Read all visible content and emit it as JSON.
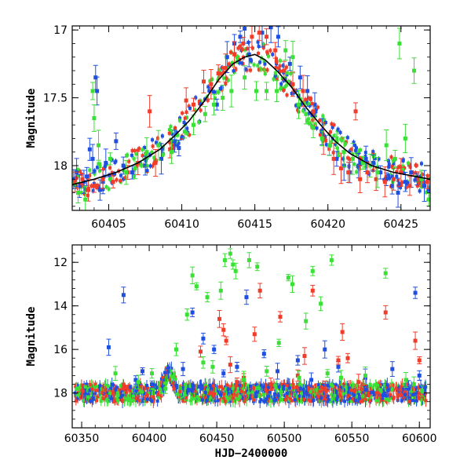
{
  "chart_data": [
    {
      "type": "scatter",
      "title": "",
      "xlabel": "",
      "ylabel": "Magnitude",
      "xlim": [
        60402.5,
        60427
      ],
      "ylim": [
        18.33,
        16.97
      ],
      "y_inverted": true,
      "xticks": [
        60405,
        60410,
        60415,
        60420,
        60425
      ],
      "xtick_labels": [
        "60405",
        "60410",
        "60415",
        "60420",
        "60425"
      ],
      "yticks": [
        17,
        17.5,
        18
      ],
      "ytick_labels": [
        "17",
        "17.5",
        "18"
      ],
      "grid": false,
      "legend": "none",
      "series": [
        {
          "color": "#1f4fe0",
          "points": [
            [
              60402.6,
              18.1
            ],
            [
              60402.8,
              18.05
            ],
            [
              60403.0,
              18.15
            ],
            [
              60403.3,
              18.12
            ],
            [
              60403.5,
              18.08
            ],
            [
              60403.7,
              17.88
            ],
            [
              60403.9,
              17.95
            ],
            [
              60404.1,
              17.35
            ],
            [
              60404.2,
              17.45
            ],
            [
              60404.4,
              18.18
            ],
            [
              60404.6,
              18.12
            ],
            [
              60404.8,
              17.98
            ],
            [
              60405.5,
              17.82
            ],
            [
              60406.0,
              18.0
            ],
            [
              60406.6,
              18.05
            ],
            [
              60407.5,
              18.0
            ],
            [
              60408.6,
              17.95
            ],
            [
              60409.5,
              17.82
            ],
            [
              60409.8,
              17.87
            ],
            [
              60412.4,
              17.55
            ],
            [
              60413.1,
              17.2
            ],
            [
              60413.6,
              17.1
            ],
            [
              60414.0,
              17.05
            ],
            [
              60414.3,
              16.99
            ],
            [
              60414.6,
              17.18
            ],
            [
              60415.5,
              17.02
            ],
            [
              60416.1,
              16.98
            ],
            [
              60416.6,
              17.05
            ],
            [
              60417.4,
              17.25
            ],
            [
              60418.1,
              17.35
            ],
            [
              60418.6,
              17.45
            ],
            [
              60419.1,
              17.55
            ],
            [
              60419.6,
              17.75
            ],
            [
              60420.1,
              17.85
            ],
            [
              60420.6,
              17.95
            ],
            [
              60421.1,
              18.0
            ],
            [
              60421.5,
              18.05
            ],
            [
              60422.1,
              18.0
            ],
            [
              60422.6,
              17.95
            ],
            [
              60423.1,
              17.98
            ],
            [
              60423.6,
              18.05
            ],
            [
              60424.0,
              18.1
            ],
            [
              60424.4,
              18.15
            ],
            [
              60424.8,
              18.2
            ],
            [
              60425.3,
              18.12
            ],
            [
              60425.7,
              18.05
            ],
            [
              60426.1,
              18.1
            ],
            [
              60426.6,
              18.15
            ],
            [
              60426.9,
              18.18
            ]
          ]
        },
        {
          "color": "#f03c28",
          "points": [
            [
              60402.7,
              18.12
            ],
            [
              60403.2,
              18.1
            ],
            [
              60403.6,
              18.18
            ],
            [
              60404.0,
              18.15
            ],
            [
              60404.6,
              18.1
            ],
            [
              60405.3,
              18.12
            ],
            [
              60406.3,
              18.05
            ],
            [
              60407.0,
              17.98
            ],
            [
              60407.8,
              17.6
            ],
            [
              60408.2,
              17.98
            ],
            [
              60409.2,
              17.88
            ],
            [
              60410.3,
              17.52
            ],
            [
              60410.8,
              17.55
            ],
            [
              60411.5,
              17.38
            ],
            [
              60412.0,
              17.4
            ],
            [
              60412.5,
              17.32
            ],
            [
              60413.0,
              17.28
            ],
            [
              60413.6,
              17.18
            ],
            [
              60414.2,
              17.1
            ],
            [
              60414.8,
              17.05
            ],
            [
              60415.3,
              17.02
            ],
            [
              60415.8,
              17.05
            ],
            [
              60416.4,
              17.15
            ],
            [
              60417.0,
              17.3
            ],
            [
              60417.6,
              17.4
            ],
            [
              60418.3,
              17.45
            ],
            [
              60419.0,
              17.6
            ],
            [
              60419.7,
              17.8
            ],
            [
              60420.4,
              17.95
            ],
            [
              60420.9,
              18.02
            ],
            [
              60421.4,
              18.05
            ],
            [
              60421.9,
              17.6
            ],
            [
              60422.2,
              18.1
            ],
            [
              60422.7,
              18.05
            ],
            [
              60423.3,
              18.1
            ],
            [
              60423.9,
              18.12
            ],
            [
              60424.5,
              18.1
            ],
            [
              60425.0,
              18.05
            ],
            [
              60425.6,
              18.15
            ],
            [
              60426.2,
              18.1
            ],
            [
              60426.8,
              18.12
            ]
          ]
        },
        {
          "color": "#3be036",
          "points": [
            [
              60402.9,
              18.2
            ],
            [
              60403.4,
              18.25
            ],
            [
              60403.9,
              17.45
            ],
            [
              60404.0,
              17.65
            ],
            [
              60404.3,
              17.85
            ],
            [
              60405.1,
              17.95
            ],
            [
              60406.2,
              18.05
            ],
            [
              60406.8,
              18.02
            ],
            [
              60407.6,
              17.9
            ],
            [
              60408.4,
              17.85
            ],
            [
              60409.3,
              17.9
            ],
            [
              60410.2,
              17.75
            ],
            [
              60410.8,
              17.7
            ],
            [
              60411.6,
              17.62
            ],
            [
              60412.2,
              17.55
            ],
            [
              60412.8,
              17.5
            ],
            [
              60413.4,
              17.45
            ],
            [
              60414.3,
              17.35
            ],
            [
              60415.1,
              17.45
            ],
            [
              60415.8,
              17.45
            ],
            [
              60416.5,
              17.45
            ],
            [
              60417.1,
              17.15
            ],
            [
              60417.6,
              17.2
            ],
            [
              60418.0,
              17.55
            ],
            [
              60418.5,
              17.62
            ],
            [
              60419.0,
              17.72
            ],
            [
              60419.6,
              17.8
            ],
            [
              60420.1,
              17.85
            ],
            [
              60420.6,
              17.82
            ],
            [
              60421.1,
              17.9
            ],
            [
              60421.7,
              17.95
            ],
            [
              60422.4,
              17.98
            ],
            [
              60422.9,
              18.0
            ],
            [
              60423.4,
              18.05
            ],
            [
              60424.0,
              17.85
            ],
            [
              60424.6,
              17.95
            ],
            [
              60424.9,
              17.1
            ],
            [
              60425.3,
              17.8
            ],
            [
              60425.9,
              17.3
            ],
            [
              60426.4,
              18.1
            ],
            [
              60426.9,
              18.25
            ]
          ]
        }
      ],
      "model_curve": {
        "color": "#000000",
        "x": [
          60402.5,
          60404,
          60405.5,
          60407,
          60408.5,
          60409.5,
          60410.5,
          60411.5,
          60412.5,
          60413.5,
          60414.3,
          60415,
          60415.7,
          60416.5,
          60417.5,
          60418.5,
          60419.5,
          60420.5,
          60421.5,
          60423,
          60424.5,
          60426,
          60427
        ],
        "y": [
          18.14,
          18.1,
          18.05,
          17.98,
          17.88,
          17.78,
          17.67,
          17.53,
          17.37,
          17.25,
          17.2,
          17.18,
          17.22,
          17.3,
          17.42,
          17.57,
          17.7,
          17.82,
          17.91,
          18.0,
          18.05,
          18.08,
          18.1
        ]
      }
    },
    {
      "type": "scatter",
      "title": "",
      "xlabel": "HJD−2400000",
      "ylabel": "Magnitude",
      "xlim": [
        60343,
        60608
      ],
      "ylim": [
        19.6,
        11.2
      ],
      "y_inverted": true,
      "xticks": [
        60350,
        60400,
        60450,
        60500,
        60550,
        60600
      ],
      "xtick_labels": [
        "60350",
        "60400",
        "60450",
        "60500",
        "60550",
        "60600"
      ],
      "yticks": [
        12,
        14,
        16,
        18
      ],
      "ytick_labels": [
        "12",
        "14",
        "16",
        "18"
      ],
      "grid": false,
      "legend": "none",
      "baseline_magnitude": 18.0,
      "outburst_peak": {
        "hjd": 60415,
        "magnitude": 17.0
      },
      "series": [
        {
          "color": "#1f4fe0",
          "points": [
            [
              60370,
              15.9
            ],
            [
              60381,
              13.5
            ],
            [
              60390,
              17.4
            ],
            [
              60395,
              17.0
            ],
            [
              60402,
              17.6
            ],
            [
              60425,
              16.9
            ],
            [
              60432,
              14.3
            ],
            [
              60440,
              15.5
            ],
            [
              60448,
              16.0
            ],
            [
              60455,
              17.1
            ],
            [
              60465,
              16.8
            ],
            [
              60472,
              13.6
            ],
            [
              60485,
              16.2
            ],
            [
              60495,
              17.0
            ],
            [
              60510,
              16.5
            ],
            [
              60520,
              17.4
            ],
            [
              60530,
              16.0
            ],
            [
              60540,
              16.8
            ],
            [
              60560,
              17.3
            ],
            [
              60580,
              16.9
            ],
            [
              60592,
              17.8
            ],
            [
              60597,
              13.4
            ],
            [
              60600,
              17.2
            ]
          ]
        },
        {
          "color": "#f03c28",
          "points": [
            [
              60438,
              16.1
            ],
            [
              60452,
              14.6
            ],
            [
              60455,
              15.1
            ],
            [
              60457,
              15.6
            ],
            [
              60460,
              16.7
            ],
            [
              60465,
              17.5
            ],
            [
              60470,
              17.3
            ],
            [
              60478,
              15.3
            ],
            [
              60482,
              13.3
            ],
            [
              60490,
              17.6
            ],
            [
              60497,
              14.5
            ],
            [
              60510,
              17.2
            ],
            [
              60515,
              16.3
            ],
            [
              60521,
              13.3
            ],
            [
              60530,
              17.8
            ],
            [
              60540,
              16.5
            ],
            [
              60543,
              15.2
            ],
            [
              60547,
              16.4
            ],
            [
              60555,
              17.5
            ],
            [
              60575,
              14.3
            ],
            [
              60597,
              15.6
            ],
            [
              60600,
              16.5
            ]
          ]
        },
        {
          "color": "#3be036",
          "points": [
            [
              60375,
              17.1
            ],
            [
              60392,
              17.5
            ],
            [
              60402,
              17.1
            ],
            [
              60412,
              17.8
            ],
            [
              60420,
              16.0
            ],
            [
              60428,
              14.4
            ],
            [
              60432,
              12.6
            ],
            [
              60435,
              13.1
            ],
            [
              60440,
              16.6
            ],
            [
              60443,
              13.6
            ],
            [
              60447,
              16.8
            ],
            [
              60453,
              13.3
            ],
            [
              60456,
              11.9
            ],
            [
              60460,
              11.6
            ],
            [
              60462,
              12.1
            ],
            [
              60464,
              12.4
            ],
            [
              60470,
              17.4
            ],
            [
              60474,
              11.9
            ],
            [
              60480,
              12.2
            ],
            [
              60487,
              17.0
            ],
            [
              60496,
              15.7
            ],
            [
              60503,
              12.7
            ],
            [
              60506,
              13.0
            ],
            [
              60511,
              17.3
            ],
            [
              60516,
              14.7
            ],
            [
              60521,
              12.4
            ],
            [
              60527,
              13.9
            ],
            [
              60532,
              17.1
            ],
            [
              60535,
              11.9
            ],
            [
              60542,
              17.3
            ],
            [
              60560,
              17.2
            ],
            [
              60575,
              12.5
            ],
            [
              60590,
              17.4
            ],
            [
              60596,
              17.6
            ],
            [
              60602,
              17.9
            ]
          ]
        }
      ]
    }
  ]
}
